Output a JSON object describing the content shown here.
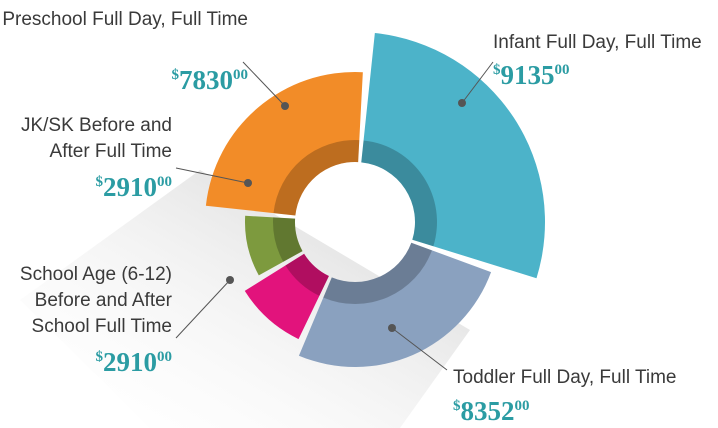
{
  "chart_data": {
    "type": "polar-area",
    "categories": [
      "Infant Full Day, Full Time",
      "Toddler Full Day, Full Time",
      "School Age (6-12) Before and After School Full Time",
      "JK/SK Before and After Full Time",
      "Preschool Full Day, Full Time"
    ],
    "values": [
      9135,
      8352,
      2910,
      2910,
      7830
    ],
    "value_labels": [
      {
        "symbol": "$",
        "amount": "9135",
        "cents": "00"
      },
      {
        "symbol": "$",
        "amount": "8352",
        "cents": "00"
      },
      {
        "symbol": "$",
        "amount": "2910",
        "cents": "00"
      },
      {
        "symbol": "$",
        "amount": "2910",
        "cents": "00"
      },
      {
        "symbol": "$",
        "amount": "7830",
        "cents": "00"
      }
    ],
    "colors": [
      "#4cb3c9",
      "#8aa1bf",
      "#e2137c",
      "#7d9a3e",
      "#f28c28"
    ]
  }
}
